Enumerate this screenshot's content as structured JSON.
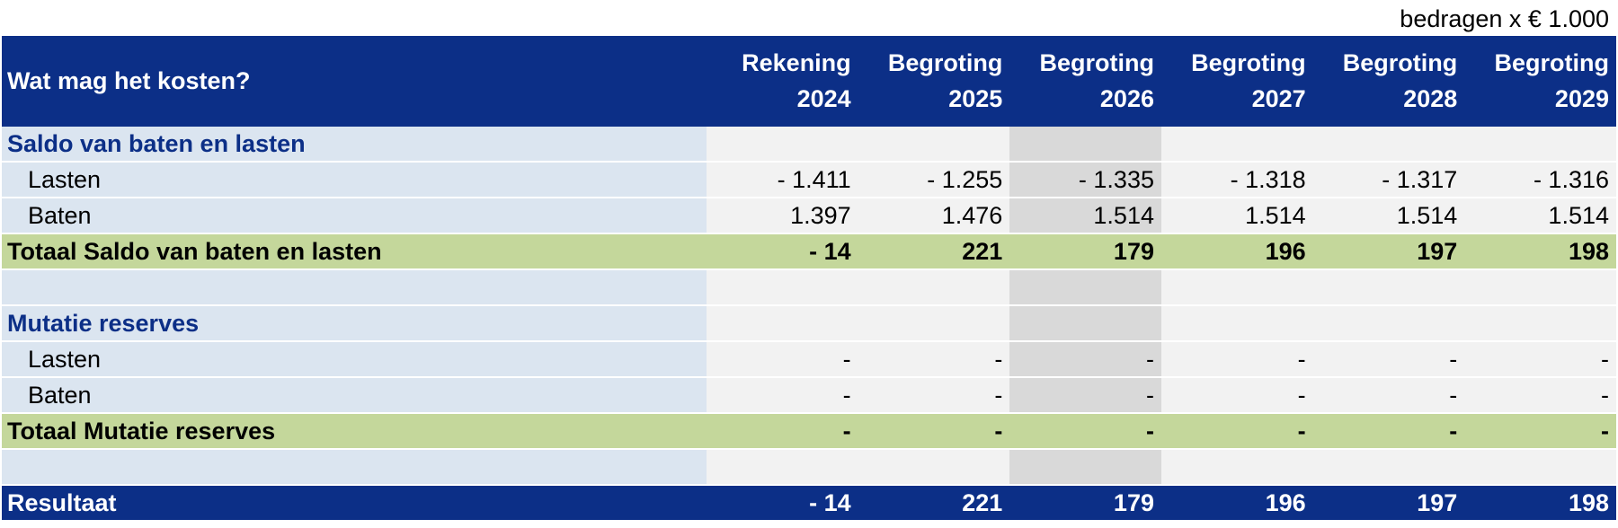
{
  "unit_note": "bedragen x € 1.000",
  "header": {
    "title": "Wat mag het kosten?",
    "columns": [
      {
        "line1": "Rekening",
        "line2": "2024"
      },
      {
        "line1": "Begroting",
        "line2": "2025"
      },
      {
        "line1": "Begroting",
        "line2": "2026"
      },
      {
        "line1": "Begroting",
        "line2": "2027"
      },
      {
        "line1": "Begroting",
        "line2": "2028"
      },
      {
        "line1": "Begroting",
        "line2": "2029"
      }
    ]
  },
  "rows": [
    {
      "label": "Saldo van baten en lasten",
      "values": [
        "",
        "",
        "",
        "",
        "",
        ""
      ]
    },
    {
      "label": "Lasten",
      "values": [
        "- 1.411",
        "- 1.255",
        "- 1.335",
        "- 1.318",
        "- 1.317",
        "- 1.316"
      ]
    },
    {
      "label": "Baten",
      "values": [
        "1.397",
        "1.476",
        "1.514",
        "1.514",
        "1.514",
        "1.514"
      ]
    },
    {
      "label": "Totaal Saldo van baten en lasten",
      "values": [
        "- 14",
        "221",
        "179",
        "196",
        "197",
        "198"
      ]
    },
    {
      "label": "",
      "values": [
        "",
        "",
        "",
        "",
        "",
        ""
      ]
    },
    {
      "label": "Mutatie reserves",
      "values": [
        "",
        "",
        "",
        "",
        "",
        ""
      ]
    },
    {
      "label": "Lasten",
      "values": [
        "-",
        "-",
        "-",
        "-",
        "-",
        "-"
      ]
    },
    {
      "label": "Baten",
      "values": [
        "-",
        "-",
        "-",
        "-",
        "-",
        "-"
      ]
    },
    {
      "label": "Totaal Mutatie reserves",
      "values": [
        "-",
        "-",
        "-",
        "-",
        "-",
        "-"
      ]
    },
    {
      "label": "",
      "values": [
        "",
        "",
        "",
        "",
        "",
        ""
      ]
    },
    {
      "label": "Resultaat",
      "values": [
        "- 14",
        "221",
        "179",
        "196",
        "197",
        "198"
      ]
    }
  ],
  "colors": {
    "header_bg": "#0c2f87",
    "label_bg": "#dbe5f0",
    "cell_bg": "#f2f2f2",
    "highlight_column_bg": "#d9d9d9",
    "total_bg": "#c4d79b"
  }
}
